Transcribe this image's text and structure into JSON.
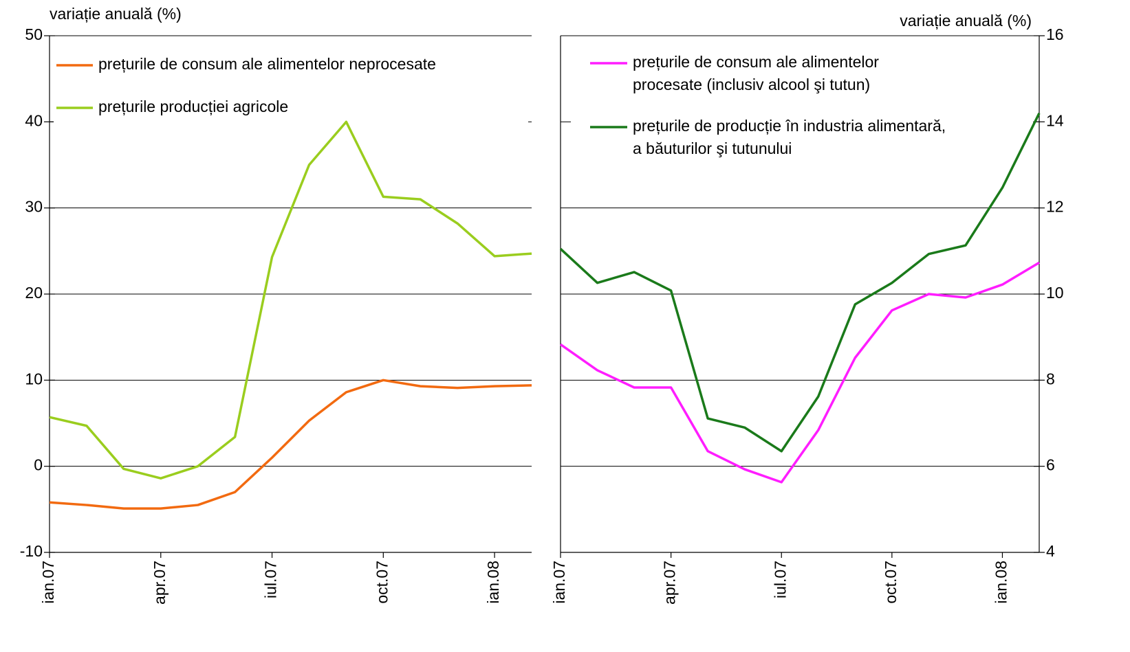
{
  "chart_data": [
    {
      "type": "line",
      "ylabel": "variație anuală (%)",
      "categories": [
        "ian.07",
        null,
        null,
        "apr.07",
        null,
        null,
        "iul.07",
        null,
        null,
        "oct.07",
        null,
        null,
        "ian.08",
        null
      ],
      "series": [
        {
          "name": "prețurile de consum ale alimentelor neprocesate",
          "color": "#f26a10",
          "values": [
            -4.2,
            -4.5,
            -4.9,
            -4.9,
            -4.5,
            -3.0,
            1.0,
            5.3,
            8.6,
            10.0,
            9.3,
            9.1,
            9.3,
            9.4
          ]
        },
        {
          "name": "prețurile producției agricole",
          "color": "#9acd1e",
          "values": [
            5.7,
            4.7,
            -0.3,
            -1.4,
            0,
            3.4,
            24.3,
            35.0,
            40.0,
            31.3,
            31.0,
            28.2,
            24.4,
            24.7
          ]
        }
      ],
      "ylim": [
        -10,
        50
      ],
      "yticks": [
        -10,
        0,
        10,
        20,
        30,
        40,
        50
      ],
      "grid": true,
      "y_axis_side": "left"
    },
    {
      "type": "line",
      "ylabel": "variație anuală (%)",
      "categories": [
        "ian.07",
        null,
        null,
        "apr.07",
        null,
        null,
        "iul.07",
        null,
        null,
        "oct.07",
        null,
        null,
        "ian.08",
        null
      ],
      "series": [
        {
          "name": "prețurile de consum ale alimentelor\nprocesate (inclusiv alcool şi tutun)",
          "color": "#ff1dff",
          "values": [
            8.83,
            8.23,
            7.83,
            7.83,
            6.35,
            5.93,
            5.63,
            6.84,
            8.52,
            9.62,
            10.0,
            9.92,
            10.22,
            10.73
          ]
        },
        {
          "name": "prețurile de producție în industria alimentară,\na băuturilor şi tutunului",
          "color": "#1a7a1a",
          "values": [
            11.05,
            10.26,
            10.51,
            10.08,
            7.11,
            6.9,
            6.35,
            7.62,
            9.76,
            10.26,
            10.93,
            11.13,
            12.47,
            14.2
          ]
        }
      ],
      "ylim": [
        4,
        16
      ],
      "yticks": [
        4,
        6,
        8,
        10,
        12,
        14,
        16
      ],
      "grid": true,
      "y_axis_side": "right"
    }
  ]
}
